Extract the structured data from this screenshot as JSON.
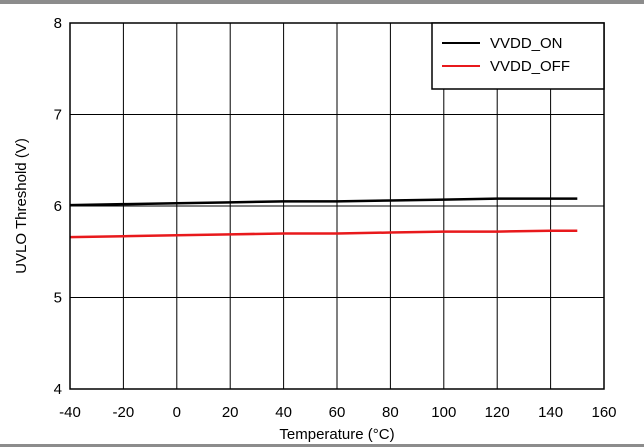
{
  "chart_data": {
    "type": "line",
    "title": "",
    "xlabel": "Temperature (°C)",
    "ylabel": "UVLO Threshold (V)",
    "xlim": [
      -40,
      160
    ],
    "ylim": [
      4,
      8
    ],
    "xticks": [
      "-40",
      "-20",
      "0",
      "20",
      "40",
      "60",
      "80",
      "100",
      "120",
      "140",
      "160"
    ],
    "yticks": [
      "4",
      "5",
      "6",
      "7",
      "8"
    ],
    "grid": true,
    "legend": "top-right",
    "series": [
      {
        "name": "VVDD_ON",
        "color": "#000000",
        "x": [
          -40,
          -20,
          0,
          20,
          40,
          60,
          80,
          100,
          120,
          140,
          150
        ],
        "y": [
          6.01,
          6.02,
          6.03,
          6.04,
          6.05,
          6.05,
          6.06,
          6.07,
          6.08,
          6.08,
          6.08
        ]
      },
      {
        "name": "VVDD_OFF",
        "color": "#e8191c",
        "x": [
          -40,
          -20,
          0,
          20,
          40,
          60,
          80,
          100,
          120,
          140,
          150
        ],
        "y": [
          5.66,
          5.67,
          5.68,
          5.69,
          5.7,
          5.7,
          5.71,
          5.72,
          5.72,
          5.73,
          5.73
        ]
      }
    ]
  }
}
